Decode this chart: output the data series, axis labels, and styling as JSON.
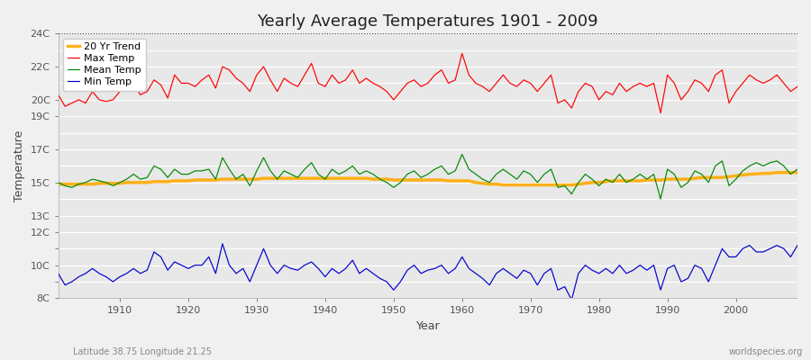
{
  "title": "Yearly Average Temperatures 1901 - 2009",
  "xlabel": "Year",
  "ylabel": "Temperature",
  "subtitle_left": "Latitude 38.75 Longitude 21.25",
  "subtitle_right": "worldspecies.org",
  "years": [
    1901,
    1902,
    1903,
    1904,
    1905,
    1906,
    1907,
    1908,
    1909,
    1910,
    1911,
    1912,
    1913,
    1914,
    1915,
    1916,
    1917,
    1918,
    1919,
    1920,
    1921,
    1922,
    1923,
    1924,
    1925,
    1926,
    1927,
    1928,
    1929,
    1930,
    1931,
    1932,
    1933,
    1934,
    1935,
    1936,
    1937,
    1938,
    1939,
    1940,
    1941,
    1942,
    1943,
    1944,
    1945,
    1946,
    1947,
    1948,
    1949,
    1950,
    1951,
    1952,
    1953,
    1954,
    1955,
    1956,
    1957,
    1958,
    1959,
    1960,
    1961,
    1962,
    1963,
    1964,
    1965,
    1966,
    1967,
    1968,
    1969,
    1970,
    1971,
    1972,
    1973,
    1974,
    1975,
    1976,
    1977,
    1978,
    1979,
    1980,
    1981,
    1982,
    1983,
    1984,
    1985,
    1986,
    1987,
    1988,
    1989,
    1990,
    1991,
    1992,
    1993,
    1994,
    1995,
    1996,
    1997,
    1998,
    1999,
    2000,
    2001,
    2002,
    2003,
    2004,
    2005,
    2006,
    2007,
    2008,
    2009
  ],
  "max_temp": [
    20.3,
    19.6,
    19.8,
    20.0,
    19.8,
    20.5,
    20.0,
    19.9,
    20.0,
    20.5,
    20.8,
    21.0,
    20.3,
    20.5,
    21.2,
    20.9,
    20.1,
    21.5,
    21.0,
    21.0,
    20.8,
    21.2,
    21.5,
    20.7,
    22.0,
    21.8,
    21.3,
    21.0,
    20.5,
    21.5,
    22.0,
    21.2,
    20.5,
    21.3,
    21.0,
    20.8,
    21.5,
    22.2,
    21.0,
    20.8,
    21.5,
    21.0,
    21.2,
    21.8,
    21.0,
    21.3,
    21.0,
    20.8,
    20.5,
    20.0,
    20.5,
    21.0,
    21.2,
    20.8,
    21.0,
    21.5,
    21.8,
    21.0,
    21.2,
    22.8,
    21.5,
    21.0,
    20.8,
    20.5,
    21.0,
    21.5,
    21.0,
    20.8,
    21.2,
    21.0,
    20.5,
    21.0,
    21.5,
    19.8,
    20.0,
    19.5,
    20.5,
    21.0,
    20.8,
    20.0,
    20.5,
    20.3,
    21.0,
    20.5,
    20.8,
    21.0,
    20.8,
    21.0,
    19.2,
    21.5,
    21.0,
    20.0,
    20.5,
    21.2,
    21.0,
    20.5,
    21.5,
    21.8,
    19.8,
    20.5,
    21.0,
    21.5,
    21.2,
    21.0,
    21.2,
    21.5,
    21.0,
    20.5,
    20.8
  ],
  "mean_temp": [
    15.0,
    14.8,
    14.7,
    14.9,
    15.0,
    15.2,
    15.1,
    15.0,
    14.8,
    15.0,
    15.2,
    15.5,
    15.2,
    15.3,
    16.0,
    15.8,
    15.3,
    15.8,
    15.5,
    15.5,
    15.7,
    15.7,
    15.8,
    15.2,
    16.5,
    15.8,
    15.2,
    15.5,
    14.8,
    15.7,
    16.5,
    15.7,
    15.2,
    15.7,
    15.5,
    15.3,
    15.8,
    16.2,
    15.5,
    15.2,
    15.8,
    15.5,
    15.7,
    16.0,
    15.5,
    15.7,
    15.5,
    15.2,
    15.0,
    14.7,
    15.0,
    15.5,
    15.7,
    15.3,
    15.5,
    15.8,
    16.0,
    15.5,
    15.7,
    16.7,
    15.8,
    15.5,
    15.2,
    15.0,
    15.5,
    15.8,
    15.5,
    15.2,
    15.7,
    15.5,
    15.0,
    15.5,
    15.8,
    14.7,
    14.8,
    14.3,
    15.0,
    15.5,
    15.2,
    14.8,
    15.2,
    15.0,
    15.5,
    15.0,
    15.2,
    15.5,
    15.2,
    15.5,
    14.0,
    15.8,
    15.5,
    14.7,
    15.0,
    15.7,
    15.5,
    15.0,
    16.0,
    16.3,
    14.8,
    15.2,
    15.7,
    16.0,
    16.2,
    16.0,
    16.2,
    16.3,
    16.0,
    15.5,
    15.8
  ],
  "min_temp": [
    9.5,
    8.8,
    9.0,
    9.3,
    9.5,
    9.8,
    9.5,
    9.3,
    9.0,
    9.3,
    9.5,
    9.8,
    9.5,
    9.7,
    10.8,
    10.5,
    9.7,
    10.2,
    10.0,
    9.8,
    10.0,
    10.0,
    10.5,
    9.5,
    11.3,
    10.0,
    9.5,
    9.8,
    9.0,
    10.0,
    11.0,
    10.0,
    9.5,
    10.0,
    9.8,
    9.7,
    10.0,
    10.2,
    9.8,
    9.3,
    9.8,
    9.5,
    9.8,
    10.3,
    9.5,
    9.8,
    9.5,
    9.2,
    9.0,
    8.5,
    9.0,
    9.7,
    10.0,
    9.5,
    9.7,
    9.8,
    10.0,
    9.5,
    9.8,
    10.5,
    9.8,
    9.5,
    9.2,
    8.8,
    9.5,
    9.8,
    9.5,
    9.2,
    9.7,
    9.5,
    8.8,
    9.5,
    9.8,
    8.5,
    8.7,
    7.9,
    9.5,
    10.0,
    9.7,
    9.5,
    9.8,
    9.5,
    10.0,
    9.5,
    9.7,
    10.0,
    9.7,
    10.0,
    8.5,
    9.8,
    10.0,
    9.0,
    9.2,
    10.0,
    9.8,
    9.0,
    10.0,
    11.0,
    10.5,
    10.5,
    11.0,
    11.2,
    10.8,
    10.8,
    11.0,
    11.2,
    11.0,
    10.5,
    11.2
  ],
  "trend_20yr": [
    14.9,
    14.9,
    14.9,
    14.9,
    14.9,
    14.9,
    14.95,
    14.95,
    14.95,
    14.95,
    15.0,
    15.0,
    15.0,
    15.0,
    15.05,
    15.05,
    15.05,
    15.1,
    15.1,
    15.1,
    15.15,
    15.15,
    15.15,
    15.15,
    15.2,
    15.2,
    15.2,
    15.2,
    15.2,
    15.2,
    15.25,
    15.25,
    15.25,
    15.25,
    15.25,
    15.25,
    15.25,
    15.25,
    15.25,
    15.25,
    15.25,
    15.25,
    15.25,
    15.25,
    15.25,
    15.25,
    15.2,
    15.2,
    15.2,
    15.15,
    15.15,
    15.15,
    15.15,
    15.15,
    15.15,
    15.15,
    15.15,
    15.1,
    15.1,
    15.1,
    15.1,
    15.0,
    14.95,
    14.9,
    14.9,
    14.85,
    14.85,
    14.85,
    14.85,
    14.85,
    14.85,
    14.85,
    14.85,
    14.85,
    14.85,
    14.85,
    14.9,
    14.95,
    15.0,
    15.0,
    15.05,
    15.1,
    15.1,
    15.1,
    15.1,
    15.1,
    15.15,
    15.15,
    15.15,
    15.2,
    15.2,
    15.2,
    15.2,
    15.25,
    15.3,
    15.3,
    15.3,
    15.3,
    15.35,
    15.4,
    15.45,
    15.5,
    15.52,
    15.55,
    15.55,
    15.6,
    15.6,
    15.6,
    15.6
  ],
  "ylim": [
    8,
    24
  ],
  "ytick_positions": [
    8,
    9,
    10,
    11,
    12,
    13,
    15,
    17,
    19,
    20,
    22,
    24
  ],
  "ytick_labels": [
    "8C",
    "",
    "10C",
    "",
    "12C",
    "13C",
    "15C",
    "17C",
    "19C",
    "20C",
    "22C",
    "24C"
  ],
  "bg_color": "#f0f0f0",
  "plot_bg_color": "#e8e8e8",
  "grid_color": "#ffffff",
  "max_color": "#ff0000",
  "mean_color": "#008800",
  "min_color": "#0000cc",
  "trend_color": "#ffaa00",
  "dotted_line_y": 24,
  "title_fontsize": 13,
  "axis_label_fontsize": 9,
  "tick_fontsize": 8,
  "legend_fontsize": 8
}
